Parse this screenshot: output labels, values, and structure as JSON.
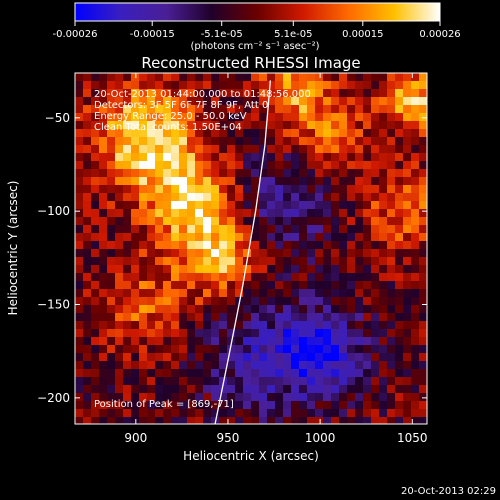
{
  "chart_data": {
    "type": "heatmap",
    "title": "Reconstructed RHESSI Image",
    "xlabel": "Heliocentric X (arcsec)",
    "ylabel": "Heliocentric Y (arcsec)",
    "xlim": [
      867,
      1058
    ],
    "ylim": [
      -214,
      -26
    ],
    "x_ticks": [
      900,
      950,
      1000,
      1050
    ],
    "y_ticks": [
      -50,
      -100,
      -150,
      -200
    ],
    "colorbar": {
      "range": [
        -0.00026,
        0.00026
      ],
      "tick_values": [
        -0.00026,
        -0.00015,
        -5.1e-05,
        5.1e-05,
        0.00015,
        0.00026
      ],
      "tick_labels": [
        "-0.00026",
        "-0.00015",
        "-5.1e-05",
        "5.1e-05",
        "0.00015",
        "0.00026"
      ],
      "unit_label": "(photons cm⁻² s⁻¹ asec⁻²)",
      "colors": [
        "#0000ff",
        "#3a1fbf",
        "#4a1f96",
        "#20002a",
        "#6a0000",
        "#d01a00",
        "#ff6a00",
        "#ffc000",
        "#ffffff"
      ]
    },
    "annotations": {
      "time": "20-Oct-2013 01:44:00.000 to 01:48:56.000",
      "detectors": "Detectors: 3F 5F 6F 7F 8F 9F, Att 0",
      "energy": "Energy Range: 25.0 - 50.0 keV",
      "method": "Clean    Total counts: 1.50E+04",
      "peak": "Position of Peak = [869,-71]"
    },
    "limb_curve": [
      [
        943,
        -214
      ],
      [
        950,
        -180
      ],
      [
        958,
        -140
      ],
      [
        965,
        -100
      ],
      [
        970,
        -65
      ],
      [
        973,
        -30
      ]
    ],
    "emission_regions": [
      {
        "x": 905,
        "y": -60,
        "level": 0.95,
        "radius": 28
      },
      {
        "x": 930,
        "y": -95,
        "level": 0.85,
        "radius": 25
      },
      {
        "x": 945,
        "y": -125,
        "level": 0.75,
        "radius": 20
      },
      {
        "x": 905,
        "y": -150,
        "level": 0.45,
        "radius": 24
      },
      {
        "x": 1005,
        "y": -60,
        "level": 0.5,
        "radius": 22
      },
      {
        "x": 1045,
        "y": -100,
        "level": 0.5,
        "radius": 22
      },
      {
        "x": 1050,
        "y": -40,
        "level": 0.85,
        "radius": 16
      },
      {
        "x": 985,
        "y": -35,
        "level": 0.65,
        "radius": 18
      }
    ],
    "negative_regions": [
      {
        "x": 1000,
        "y": -175,
        "level": -0.9,
        "radius": 22
      },
      {
        "x": 980,
        "y": -95,
        "level": -0.45,
        "radius": 28
      },
      {
        "x": 965,
        "y": -180,
        "level": -0.5,
        "radius": 30
      }
    ]
  },
  "footer": {
    "timestamp": "20-Oct-2013 02:29"
  }
}
